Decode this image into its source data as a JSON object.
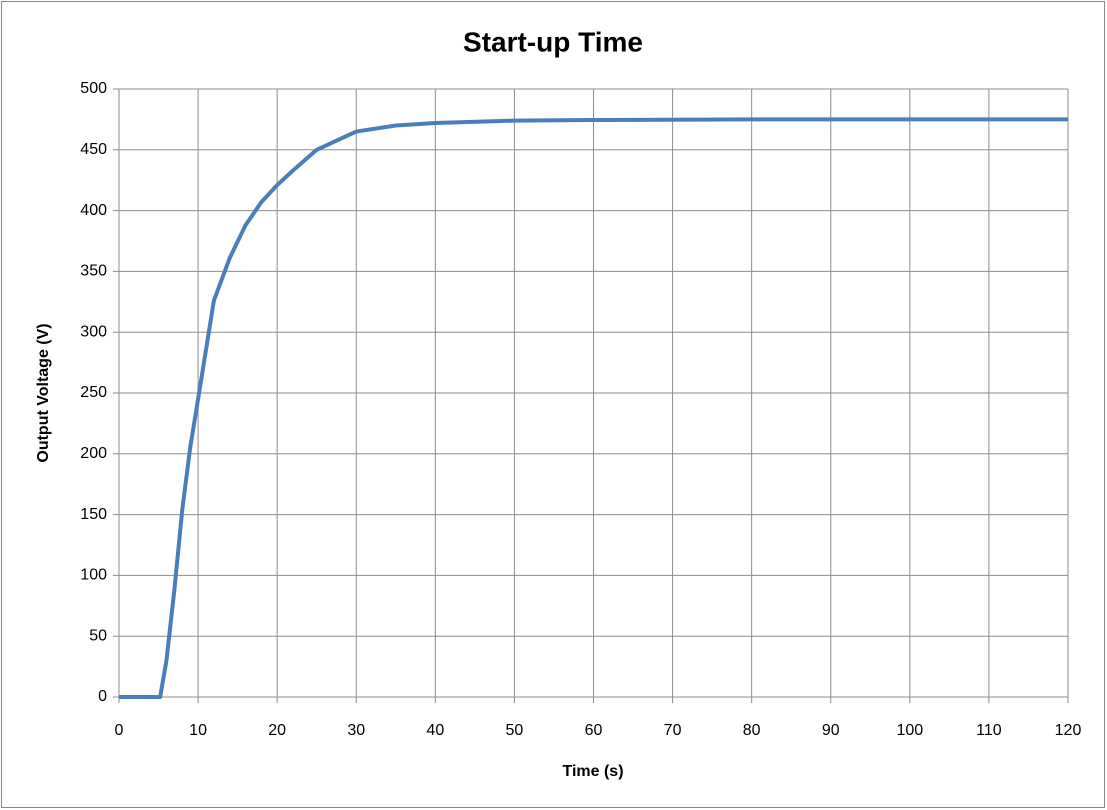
{
  "chart_data": {
    "type": "line",
    "title": "Start-up Time",
    "xlabel": "Time (s)",
    "ylabel": "Output Voltage (V)",
    "x": [
      0,
      5,
      5.2,
      6,
      7,
      8,
      9,
      10,
      12,
      14,
      16,
      18,
      20,
      22,
      25,
      28,
      30,
      35,
      40,
      50,
      60,
      80,
      100,
      120
    ],
    "values": [
      0,
      0,
      0,
      30,
      88,
      154,
      205,
      245,
      326,
      361,
      388,
      407,
      421,
      433,
      450,
      459,
      465,
      470,
      472,
      474,
      474.5,
      475,
      475,
      475
    ],
    "color": "#4a7ebb",
    "xlim": [
      0,
      120
    ],
    "xticks": [
      0,
      10,
      20,
      30,
      40,
      50,
      60,
      70,
      80,
      90,
      100,
      110,
      120
    ],
    "ylim": [
      0,
      500
    ],
    "yticks": [
      0,
      50,
      100,
      150,
      200,
      250,
      300,
      350,
      400,
      450,
      500
    ],
    "grid": true
  }
}
